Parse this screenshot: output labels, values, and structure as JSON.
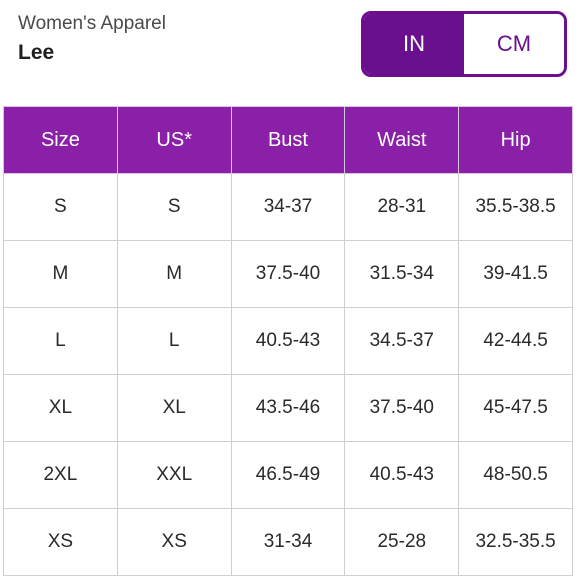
{
  "header": {
    "category": "Women's Apparel",
    "brand": "Lee"
  },
  "unit_toggle": {
    "options": [
      "IN",
      "CM"
    ],
    "selected": "IN"
  },
  "colors": {
    "accent": "#6a0f8e",
    "header_bg": "#8a1fa8"
  },
  "table": {
    "columns": [
      "Size",
      "US*",
      "Bust",
      "Waist",
      "Hip"
    ],
    "rows": [
      [
        "S",
        "S",
        "34-37",
        "28-31",
        "35.5-38.5"
      ],
      [
        "M",
        "M",
        "37.5-40",
        "31.5-34",
        "39-41.5"
      ],
      [
        "L",
        "L",
        "40.5-43",
        "34.5-37",
        "42-44.5"
      ],
      [
        "XL",
        "XL",
        "43.5-46",
        "37.5-40",
        "45-47.5"
      ],
      [
        "2XL",
        "XXL",
        "46.5-49",
        "40.5-43",
        "48-50.5"
      ],
      [
        "XS",
        "XS",
        "31-34",
        "25-28",
        "32.5-35.5"
      ]
    ]
  }
}
